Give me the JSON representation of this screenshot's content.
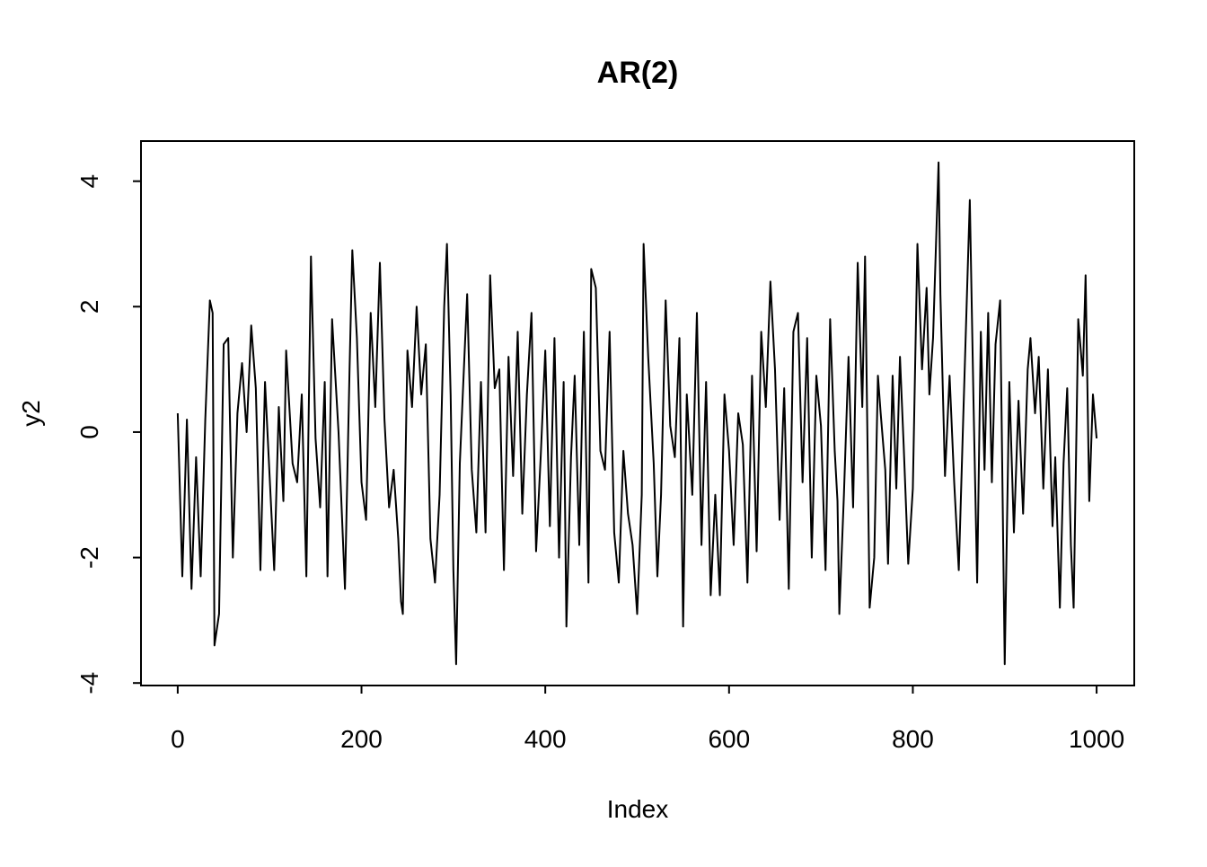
{
  "chart_data": {
    "type": "line",
    "title": "AR(2)",
    "x_label": "Index",
    "y_label": "y2",
    "x": [
      0,
      5,
      10,
      15,
      20,
      25,
      30,
      35,
      38,
      40,
      45,
      50,
      55,
      60,
      65,
      70,
      75,
      80,
      85,
      90,
      95,
      100,
      105,
      110,
      115,
      118,
      125,
      130,
      135,
      140,
      145,
      150,
      155,
      160,
      163,
      168,
      175,
      182,
      187,
      190,
      195,
      200,
      205,
      210,
      215,
      220,
      225,
      230,
      235,
      240,
      243,
      245,
      250,
      255,
      260,
      265,
      270,
      275,
      280,
      285,
      290,
      293,
      297,
      300,
      303,
      307,
      312,
      315,
      320,
      325,
      330,
      335,
      340,
      345,
      350,
      355,
      360,
      365,
      370,
      375,
      380,
      385,
      390,
      395,
      400,
      405,
      410,
      415,
      420,
      423,
      428,
      432,
      437,
      442,
      447,
      450,
      455,
      460,
      465,
      470,
      475,
      480,
      485,
      490,
      495,
      500,
      505,
      507,
      512,
      518,
      522,
      526,
      531,
      536,
      541,
      546,
      550,
      554,
      560,
      565,
      570,
      575,
      580,
      585,
      590,
      595,
      600,
      605,
      610,
      615,
      620,
      625,
      630,
      635,
      640,
      645,
      650,
      655,
      660,
      665,
      670,
      675,
      680,
      685,
      690,
      695,
      700,
      705,
      710,
      715,
      718,
      720,
      725,
      730,
      735,
      740,
      745,
      748,
      753,
      758,
      762,
      765,
      770,
      773,
      778,
      782,
      786,
      790,
      795,
      800,
      805,
      810,
      815,
      818,
      822,
      828,
      830,
      835,
      840,
      845,
      850,
      855,
      862,
      866,
      870,
      874,
      878,
      882,
      886,
      890,
      895,
      900,
      905,
      910,
      915,
      920,
      925,
      928,
      933,
      937,
      942,
      947,
      952,
      955,
      960,
      964,
      968,
      972,
      975,
      980,
      985,
      988,
      992,
      996,
      1000
    ],
    "series": [
      {
        "name": "y2",
        "color": "#000000",
        "values": [
          0.3,
          -2.3,
          0.2,
          -2.5,
          -0.4,
          -2.3,
          0.2,
          2.1,
          1.9,
          -3.4,
          -2.9,
          1.4,
          1.5,
          -2.0,
          0.3,
          1.1,
          0.0,
          1.7,
          0.7,
          -2.2,
          0.8,
          -0.7,
          -2.2,
          0.4,
          -1.1,
          1.3,
          -0.5,
          -0.8,
          0.6,
          -2.3,
          2.8,
          -0.1,
          -1.2,
          0.8,
          -2.3,
          1.8,
          0.0,
          -2.5,
          1.0,
          2.9,
          1.5,
          -0.8,
          -1.4,
          1.9,
          0.4,
          2.7,
          0.2,
          -1.2,
          -0.6,
          -1.7,
          -2.7,
          -2.9,
          1.3,
          0.4,
          2.0,
          0.6,
          1.4,
          -1.7,
          -2.4,
          -1.0,
          2.0,
          3.0,
          0.6,
          -2.2,
          -3.7,
          -0.5,
          1.2,
          2.2,
          -0.6,
          -1.6,
          0.8,
          -1.6,
          2.5,
          0.7,
          1.0,
          -2.2,
          1.2,
          -0.7,
          1.6,
          -1.3,
          0.6,
          1.9,
          -1.9,
          -0.4,
          1.3,
          -1.5,
          1.5,
          -2.0,
          0.8,
          -3.1,
          -0.4,
          0.9,
          -1.8,
          1.6,
          -2.4,
          2.6,
          2.3,
          -0.3,
          -0.6,
          1.6,
          -1.6,
          -2.4,
          -0.3,
          -1.3,
          -1.8,
          -2.9,
          -1.0,
          3.0,
          1.2,
          -0.5,
          -2.3,
          -1.0,
          2.1,
          0.1,
          -0.4,
          1.5,
          -3.1,
          0.6,
          -1.0,
          1.9,
          -1.8,
          0.8,
          -2.6,
          -1.0,
          -2.6,
          0.6,
          -0.3,
          -1.8,
          0.3,
          -0.2,
          -2.4,
          0.9,
          -1.9,
          1.6,
          0.4,
          2.4,
          1.0,
          -1.4,
          0.7,
          -2.5,
          1.6,
          1.9,
          -0.8,
          1.5,
          -2.0,
          0.9,
          0.1,
          -2.2,
          1.8,
          -0.3,
          -1.1,
          -2.9,
          -1.0,
          1.2,
          -1.2,
          2.7,
          0.4,
          2.8,
          -2.8,
          -2.0,
          0.9,
          0.3,
          -0.6,
          -2.1,
          0.9,
          -0.9,
          1.2,
          -0.2,
          -2.1,
          -0.9,
          3.0,
          1.0,
          2.3,
          0.6,
          1.5,
          4.3,
          2.2,
          -0.7,
          0.9,
          -0.8,
          -2.2,
          0.3,
          3.7,
          0.5,
          -2.4,
          1.6,
          -0.6,
          1.9,
          -0.8,
          1.4,
          2.1,
          -3.7,
          0.8,
          -1.6,
          0.5,
          -1.3,
          1.0,
          1.5,
          0.3,
          1.2,
          -0.9,
          1.0,
          -1.5,
          -0.4,
          -2.8,
          -0.5,
          0.7,
          -1.8,
          -2.8,
          1.8,
          0.9,
          2.5,
          -1.1,
          0.6,
          -0.1
        ]
      }
    ],
    "xlim": [
      -39.96,
      1040.96
    ],
    "ylim": [
      -4.04,
      4.64
    ],
    "xticks": [
      0,
      200,
      400,
      600,
      800,
      1000
    ],
    "yticks": [
      -4,
      -2,
      0,
      2,
      4
    ]
  }
}
